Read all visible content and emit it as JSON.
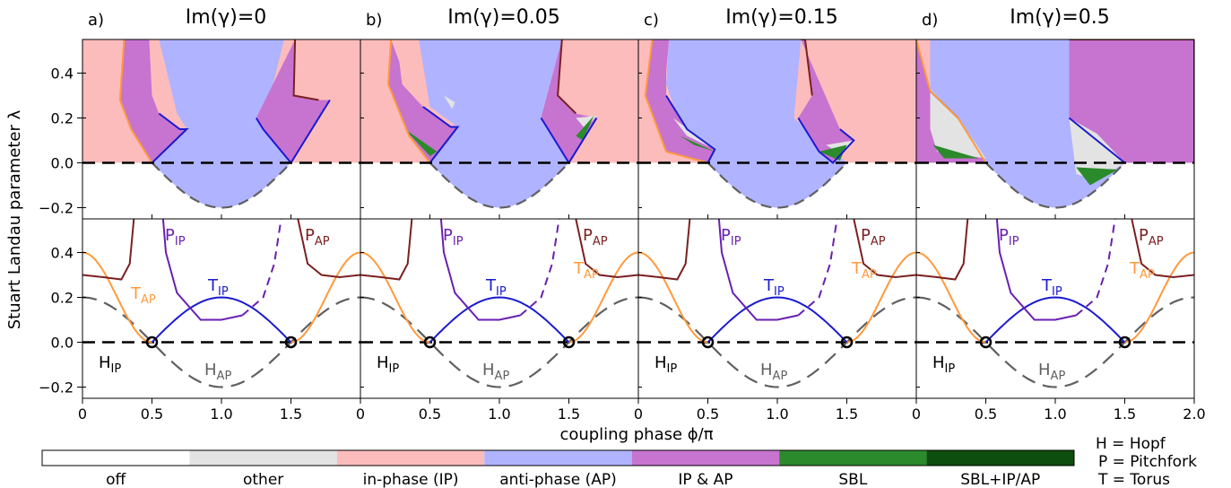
{
  "figure": {
    "ylabel": "Stuart Landau parameter λ",
    "xlabel": "coupling phase ϕ/π"
  },
  "panels": [
    {
      "letter": "a)",
      "title": "Im(γ)=0"
    },
    {
      "letter": "b)",
      "title": "Im(γ)=0.05"
    },
    {
      "letter": "c)",
      "title": "Im(γ)=0.15"
    },
    {
      "letter": "d)",
      "title": "Im(γ)=0.5"
    }
  ],
  "colors": {
    "off": "#ffffff",
    "other": "#e3e3e3",
    "in_phase": "#fdbcbc",
    "anti_phase": "#b0b3ff",
    "ip_ap": "#c773d0",
    "sbl": "#2b8a2b",
    "sbl_ip_ap": "#0d4d0d",
    "hopf_ip": "#000000",
    "hopf_ap": "#606060",
    "torus_ip": "#1a1ad0",
    "torus_ap": "#ff9a3c",
    "pitch_ip": "#6a1fb0",
    "pitch_ap": "#7b2020"
  },
  "colorbar": {
    "labels": [
      "off",
      "other",
      "in-phase (IP)",
      "anti-phase (AP)",
      "IP & AP",
      "SBL",
      "SBL+IP/AP"
    ]
  },
  "legend": {
    "lines": [
      "H = Hopf",
      "P = Pitchfork",
      "T = Torus"
    ]
  },
  "curve_labels": {
    "h_letter": "H",
    "t_letter": "T",
    "p_letter": "P",
    "ip_sub": "IP",
    "ap_sub": "AP"
  },
  "chart_data": {
    "type": "line",
    "x_range": [
      0,
      2
    ],
    "y_range": [
      -0.25,
      0.55
    ],
    "xticks": [
      "0",
      "0.5",
      "1.0",
      "1.5",
      "2.0"
    ],
    "yticks": [
      "−0.2",
      "0.0",
      "0.2",
      "0.4"
    ],
    "xtick_values": [
      0,
      0.5,
      1.0,
      1.5,
      2.0
    ],
    "ytick_values": [
      -0.2,
      0.0,
      0.2,
      0.4
    ],
    "series": [
      {
        "name": "H_IP",
        "values": [
          [
            0,
            0
          ],
          [
            2,
            0
          ]
        ]
      },
      {
        "name": "H_AP",
        "values": [
          [
            0,
            0.2
          ],
          [
            0.5,
            0.0
          ],
          [
            1.0,
            -0.2
          ],
          [
            1.5,
            0.0
          ],
          [
            2.0,
            0.2
          ]
        ]
      },
      {
        "name": "T_IP",
        "values": [
          [
            0.5,
            0.0
          ],
          [
            1.0,
            0.2
          ],
          [
            1.5,
            0.0
          ]
        ]
      },
      {
        "name": "T_AP",
        "values": [
          [
            0,
            0.4
          ],
          [
            0.5,
            0.0
          ],
          [
            1.5,
            0.0
          ],
          [
            2.0,
            0.4
          ]
        ]
      }
    ],
    "bifurcation_points": [
      [
        0.5,
        0.0
      ],
      [
        1.5,
        0.0
      ]
    ]
  }
}
